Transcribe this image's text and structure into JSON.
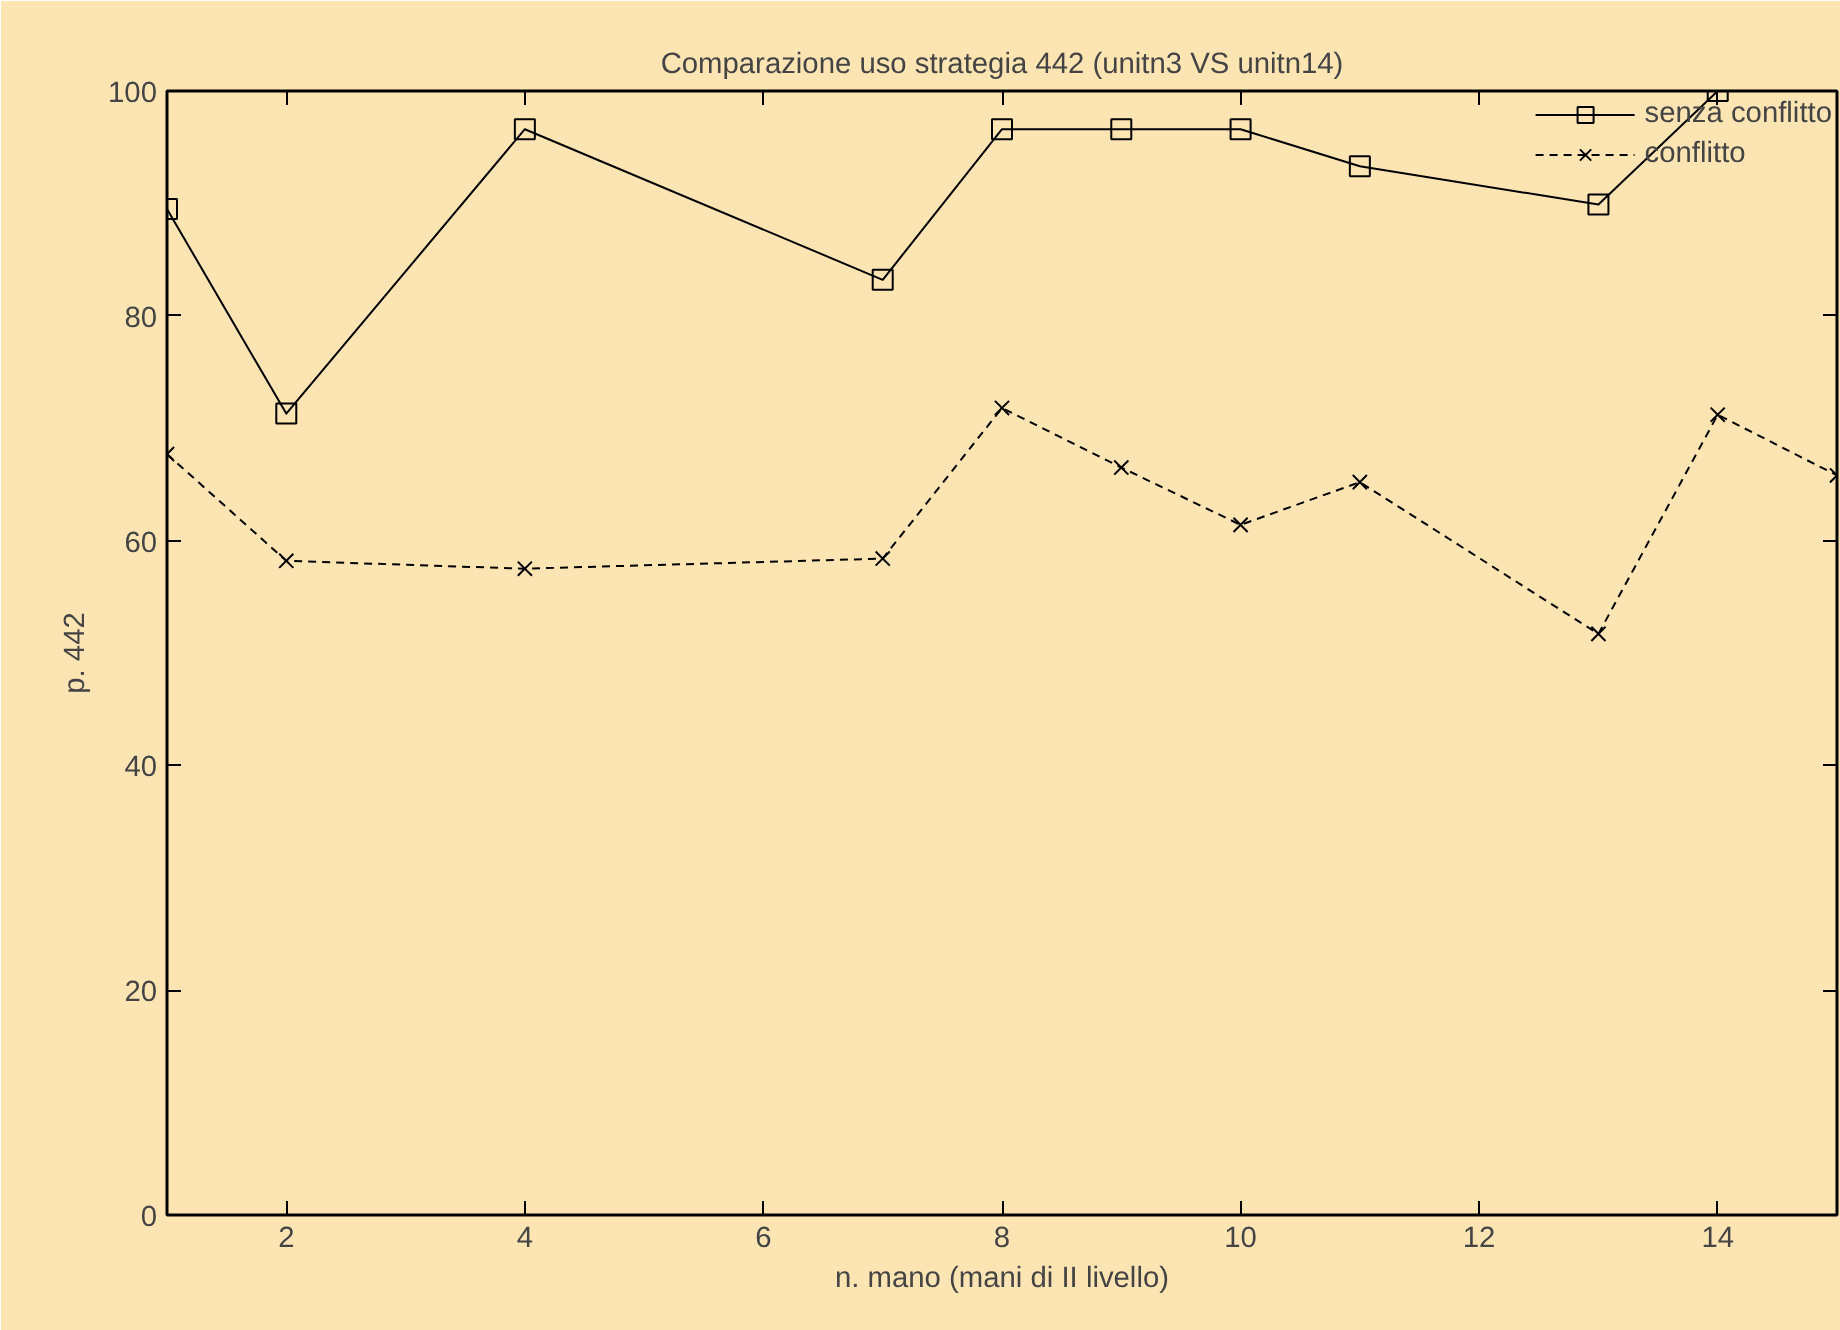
{
  "chart_data": {
    "type": "line",
    "title": "Comparazione uso strategia 442 (unitn3 VS unitn14)",
    "xlabel": "n. mano (mani di II livello)",
    "ylabel": "p. 442",
    "x": [
      1,
      2,
      4,
      7,
      8,
      9,
      10,
      11,
      13,
      14,
      15
    ],
    "series": [
      {
        "name": "senza conflitto",
        "color": "#000000",
        "marker": "square",
        "line_style": "solid",
        "x": [
          1,
          2,
          4,
          7,
          8,
          9,
          10,
          11,
          13,
          14
        ],
        "values": [
          89.5,
          71.3,
          96.6,
          83.2,
          96.6,
          96.6,
          96.6,
          93.3,
          89.9,
          100
        ]
      },
      {
        "name": "conflitto",
        "color": "#000000",
        "marker": "cross",
        "line_style": "dashed",
        "values": [
          67.7,
          58.2,
          57.5,
          58.4,
          71.8,
          66.5,
          61.4,
          65.2,
          51.7,
          71.2,
          65.8
        ]
      }
    ],
    "xlim": [
      1,
      15
    ],
    "ylim": [
      0,
      100
    ],
    "xticks": [
      2,
      4,
      6,
      8,
      10,
      12,
      14
    ],
    "yticks": [
      0,
      20,
      40,
      60,
      80,
      100
    ],
    "grid": false,
    "legend": "top right"
  }
}
